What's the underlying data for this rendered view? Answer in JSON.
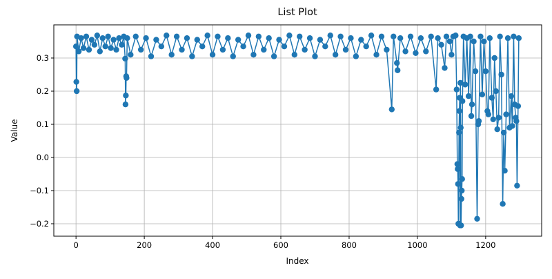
{
  "chart_data": {
    "type": "line",
    "title": "List Plot",
    "x_label": "Index",
    "y_label": "Value",
    "color": "#1f77b4",
    "grid": true,
    "markers": true,
    "xlim": [
      -65,
      1364
    ],
    "ylim": [
      -0.2375,
      0.4
    ],
    "xticks": [
      0,
      200,
      400,
      600,
      800,
      1000,
      1200
    ],
    "yticks": [
      {
        "value": -0.2,
        "label": "−0.2"
      },
      {
        "value": -0.1,
        "label": "−0.1"
      },
      {
        "value": 0.0,
        "label": "0.0"
      },
      0.1,
      0.2,
      0.3
    ],
    "x": [
      0,
      1,
      2,
      3,
      8,
      15,
      22,
      30,
      38,
      46,
      54,
      62,
      70,
      78,
      86,
      94,
      102,
      110,
      118,
      126,
      134,
      140,
      144,
      145,
      146,
      147,
      148,
      150,
      160,
      175,
      190,
      205,
      220,
      235,
      250,
      265,
      280,
      295,
      310,
      325,
      340,
      355,
      370,
      385,
      400,
      415,
      430,
      445,
      460,
      475,
      490,
      505,
      520,
      535,
      550,
      565,
      580,
      595,
      610,
      625,
      640,
      655,
      670,
      685,
      700,
      715,
      730,
      745,
      760,
      775,
      790,
      805,
      820,
      835,
      850,
      865,
      880,
      895,
      910,
      925,
      930,
      940,
      942,
      950,
      965,
      980,
      995,
      1010,
      1025,
      1040,
      1055,
      1060,
      1070,
      1080,
      1085,
      1095,
      1100,
      1105,
      1112,
      1115,
      1117,
      1118,
      1119,
      1120,
      1122,
      1123,
      1124,
      1125,
      1126,
      1127,
      1128,
      1129,
      1130,
      1131,
      1132,
      1135,
      1140,
      1145,
      1150,
      1155,
      1158,
      1160,
      1165,
      1170,
      1175,
      1178,
      1180,
      1185,
      1190,
      1195,
      1200,
      1205,
      1208,
      1212,
      1218,
      1222,
      1226,
      1230,
      1234,
      1238,
      1242,
      1246,
      1250,
      1253,
      1256,
      1260,
      1265,
      1270,
      1275,
      1278,
      1282,
      1285,
      1288,
      1290,
      1292,
      1295,
      1297
    ],
    "values": [
      0.335,
      0.228,
      0.2,
      0.365,
      0.32,
      0.36,
      0.33,
      0.365,
      0.325,
      0.355,
      0.34,
      0.368,
      0.32,
      0.36,
      0.335,
      0.365,
      0.33,
      0.355,
      0.325,
      0.36,
      0.34,
      0.365,
      0.298,
      0.16,
      0.187,
      0.245,
      0.24,
      0.36,
      0.31,
      0.365,
      0.325,
      0.36,
      0.305,
      0.355,
      0.335,
      0.368,
      0.31,
      0.365,
      0.325,
      0.36,
      0.305,
      0.355,
      0.335,
      0.368,
      0.31,
      0.365,
      0.325,
      0.36,
      0.305,
      0.355,
      0.335,
      0.368,
      0.31,
      0.365,
      0.325,
      0.36,
      0.305,
      0.355,
      0.335,
      0.368,
      0.31,
      0.365,
      0.325,
      0.36,
      0.305,
      0.355,
      0.335,
      0.368,
      0.31,
      0.365,
      0.325,
      0.36,
      0.305,
      0.355,
      0.335,
      0.368,
      0.31,
      0.365,
      0.325,
      0.145,
      0.365,
      0.285,
      0.263,
      0.36,
      0.32,
      0.365,
      0.315,
      0.36,
      0.32,
      0.365,
      0.205,
      0.36,
      0.34,
      0.27,
      0.365,
      0.35,
      0.31,
      0.365,
      0.368,
      0.205,
      -0.02,
      -0.035,
      -0.08,
      -0.2,
      0.075,
      0.14,
      0.18,
      -0.205,
      0.225,
      0.09,
      -0.205,
      -0.125,
      -0.1,
      -0.065,
      0.17,
      0.365,
      0.22,
      0.36,
      0.185,
      0.365,
      0.125,
      0.16,
      0.35,
      0.26,
      -0.185,
      0.1,
      0.11,
      0.365,
      0.19,
      0.35,
      0.26,
      0.14,
      0.13,
      0.36,
      0.18,
      0.115,
      0.3,
      0.2,
      0.085,
      0.12,
      0.365,
      0.25,
      -0.14,
      0.075,
      -0.04,
      0.13,
      0.36,
      0.09,
      0.185,
      0.095,
      0.365,
      0.16,
      0.12,
      0.11,
      -0.085,
      0.155,
      0.36
    ]
  }
}
